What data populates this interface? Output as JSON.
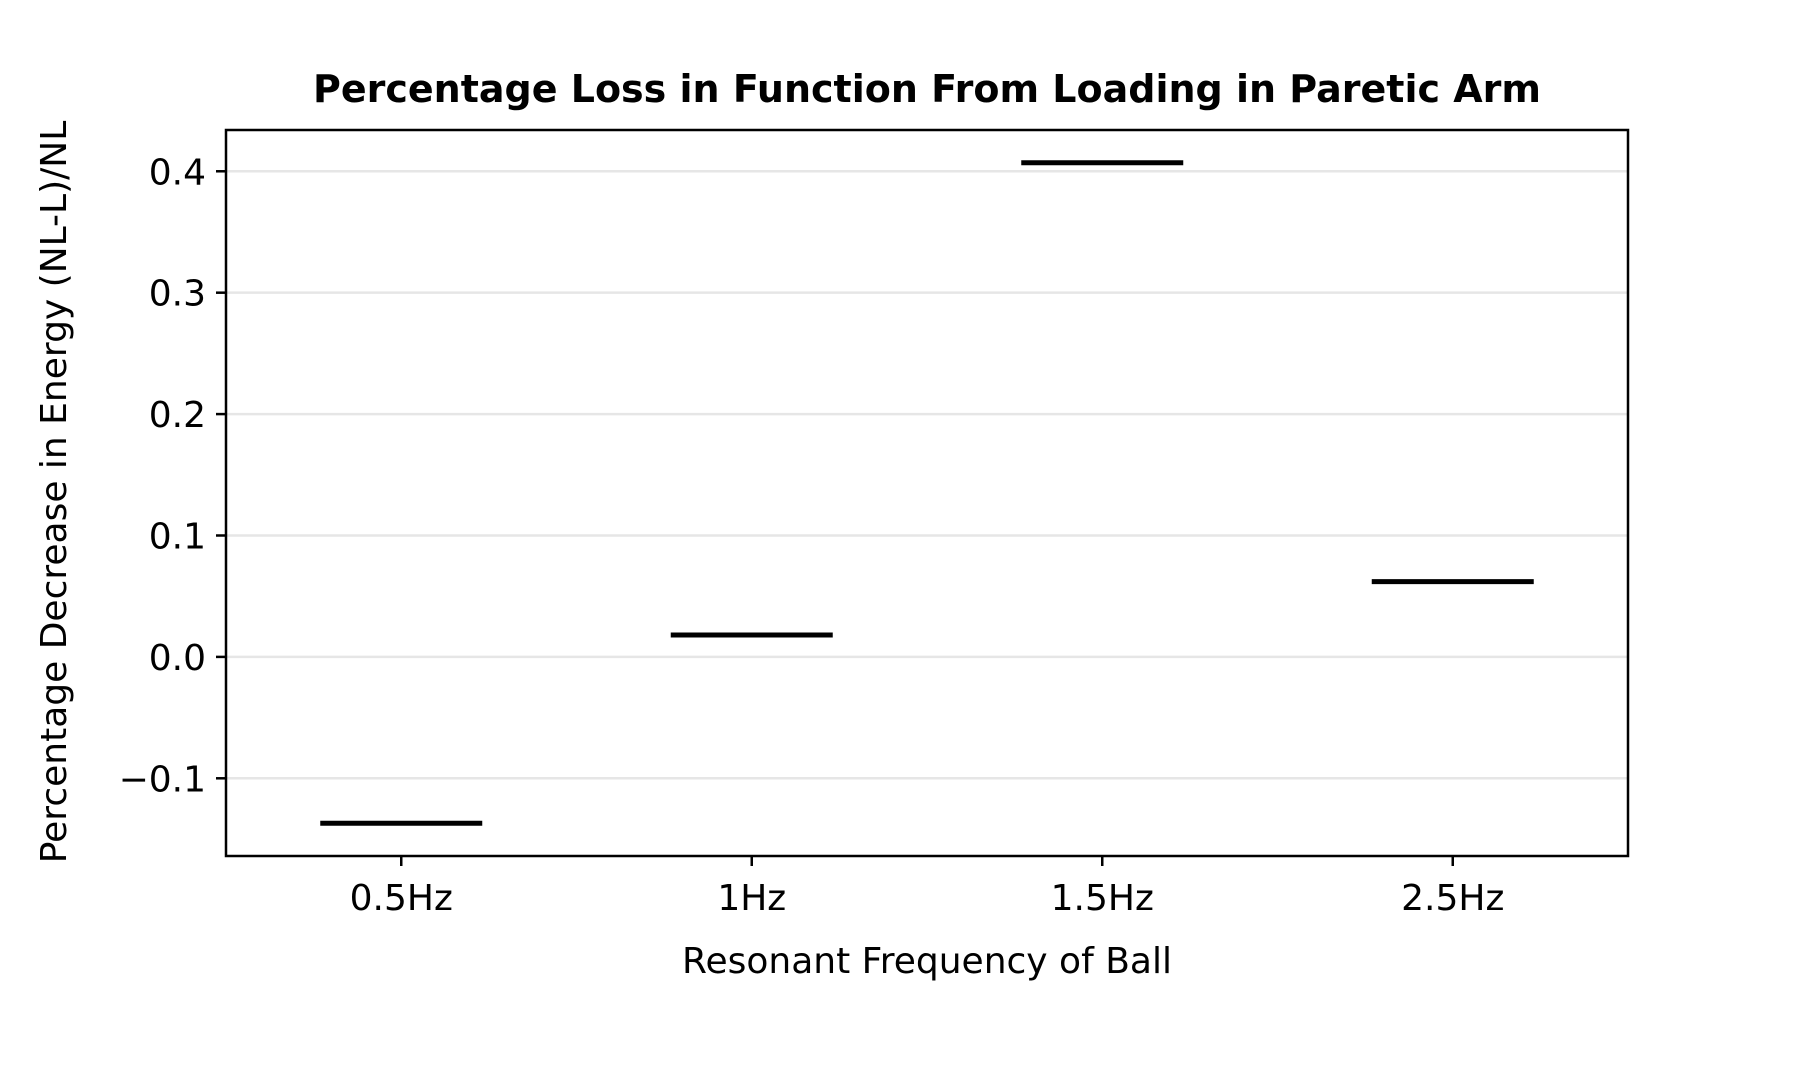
{
  "chart_data": {
    "type": "scatter",
    "marker": "horizontal-line",
    "title": "Percentage Loss in Function From Loading in Paretic Arm",
    "xlabel": "Resonant Frequency of Ball",
    "ylabel": "Percentage Decrease in Energy (NL-L)/NL",
    "categories": [
      "0.5Hz",
      "1Hz",
      "1.5Hz",
      "2.5Hz"
    ],
    "values": [
      -0.137,
      0.018,
      0.407,
      0.062
    ],
    "ylim": [
      -0.164,
      0.434
    ],
    "yticks": [
      -0.1,
      0.0,
      0.1,
      0.2,
      0.3,
      0.4
    ],
    "ytick_labels": [
      "−0.1",
      "0.0",
      "0.1",
      "0.2",
      "0.3",
      "0.4"
    ],
    "grid": "y",
    "legend": "none",
    "color": "#000000"
  }
}
